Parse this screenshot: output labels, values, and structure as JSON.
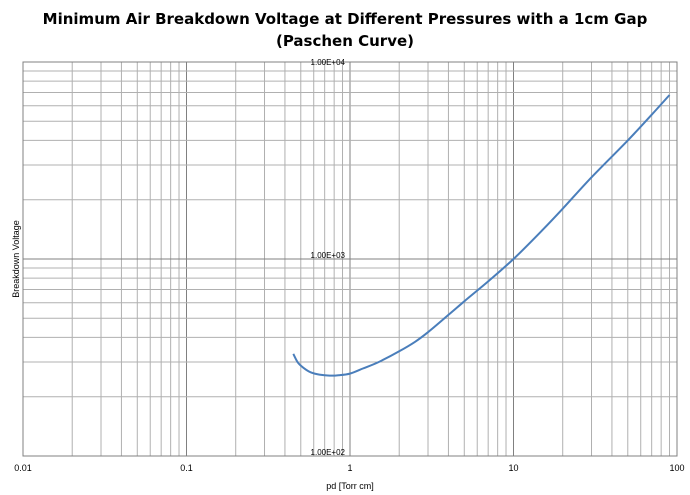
{
  "title_line1": "Minimum Air Breakdown Voltage at Different Pressures with a 1cm Gap",
  "title_line2": "(Paschen Curve)",
  "chart_data": {
    "type": "line",
    "title": "Minimum Air Breakdown Voltage at Different Pressures with a 1cm Gap (Paschen Curve)",
    "xlabel": "pd [Torr cm]",
    "ylabel": "Breakdown Voltage",
    "xscale": "log",
    "yscale": "log",
    "xlim": [
      0.01,
      100
    ],
    "ylim": [
      100,
      10000
    ],
    "xticks": [
      "0.01",
      "0.1",
      "1",
      "10",
      "100"
    ],
    "yticks": [
      "1.00E+02",
      "1.00E+03",
      "1.00E+04"
    ],
    "grid": true,
    "series_color": "#4a7ebb",
    "series": [
      {
        "x": [
          0.45,
          0.48,
          0.52,
          0.58,
          0.65,
          0.75,
          0.85,
          1.0,
          1.2,
          1.5,
          2.0,
          2.5,
          3.0,
          4.0,
          5.0,
          7.0,
          10,
          15,
          20,
          30,
          50,
          70,
          90
        ],
        "y": [
          330,
          298,
          280,
          265,
          259,
          256,
          257,
          262,
          278,
          300,
          340,
          380,
          425,
          520,
          610,
          770,
          1000,
          1400,
          1800,
          2600,
          4000,
          5400,
          6800
        ]
      }
    ]
  }
}
